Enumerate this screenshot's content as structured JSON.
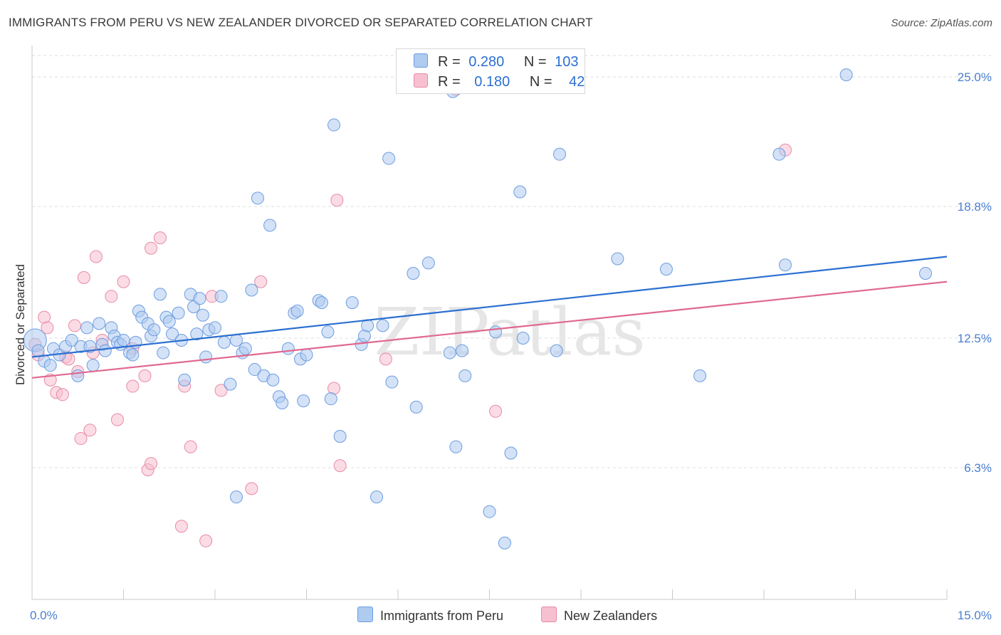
{
  "title": "IMMIGRANTS FROM PERU VS NEW ZEALANDER DIVORCED OR SEPARATED CORRELATION CHART",
  "source": "Source: ZipAtlas.com",
  "watermark": "ZIPatlas",
  "colors": {
    "blue_fill": "#aecbf0",
    "blue_stroke": "#6d9de0",
    "blue_line": "#2b6fd1",
    "pink_fill": "#f7c0d0",
    "pink_stroke": "#e88aa8",
    "pink_line": "#e06890",
    "tick_text": "#4a7fcf",
    "grid": "#dddddd"
  },
  "legend": {
    "rows": [
      {
        "r_label": "R =",
        "r_value": "0.280",
        "n_label": "N =",
        "n_value": "103",
        "color": "#aecbf0"
      },
      {
        "r_label": "R =",
        "r_value": "0.180",
        "n_label": "N =",
        "n_value": "42",
        "color": "#f7c0d0"
      }
    ]
  },
  "bottom_legend": [
    {
      "label": "Immigrants from Peru",
      "color": "#aecbf0"
    },
    {
      "label": "New Zealanders",
      "color": "#f7c0d0"
    }
  ],
  "chart_data": {
    "type": "scatter",
    "title": "IMMIGRANTS FROM PERU VS NEW ZEALANDER DIVORCED OR SEPARATED CORRELATION CHART",
    "xlabel": "",
    "ylabel": "Divorced or Separated",
    "xlim": [
      0,
      15
    ],
    "ylim": [
      0,
      26.5
    ],
    "x_tick_labels": [
      "0.0%",
      "15.0%"
    ],
    "y_ticks": [
      6.3,
      12.5,
      18.8,
      25.0
    ],
    "y_tick_labels": [
      "6.3%",
      "12.5%",
      "18.8%",
      "25.0%"
    ],
    "grid": true,
    "legend_position": "top-center",
    "series": [
      {
        "name": "Immigrants from Peru",
        "color": "#aecbf0",
        "trend": {
          "x": [
            0,
            15
          ],
          "y": [
            11.6,
            16.4
          ]
        },
        "points": [
          [
            0.05,
            12.4
          ],
          [
            0.1,
            11.9
          ],
          [
            0.2,
            11.4
          ],
          [
            0.3,
            11.2
          ],
          [
            0.35,
            12.0
          ],
          [
            0.45,
            11.7
          ],
          [
            0.55,
            12.1
          ],
          [
            0.65,
            12.4
          ],
          [
            0.75,
            10.7
          ],
          [
            0.8,
            12.1
          ],
          [
            0.9,
            13.0
          ],
          [
            0.95,
            12.1
          ],
          [
            1.0,
            11.2
          ],
          [
            1.1,
            13.2
          ],
          [
            1.15,
            12.2
          ],
          [
            1.2,
            11.9
          ],
          [
            1.3,
            13.0
          ],
          [
            1.35,
            12.6
          ],
          [
            1.4,
            12.3
          ],
          [
            1.45,
            12.2
          ],
          [
            1.5,
            12.4
          ],
          [
            1.6,
            11.8
          ],
          [
            1.65,
            11.7
          ],
          [
            1.7,
            12.3
          ],
          [
            1.75,
            13.8
          ],
          [
            1.8,
            13.5
          ],
          [
            1.9,
            13.2
          ],
          [
            1.95,
            12.6
          ],
          [
            2.0,
            12.9
          ],
          [
            2.1,
            14.6
          ],
          [
            2.15,
            11.8
          ],
          [
            2.2,
            13.5
          ],
          [
            2.25,
            13.3
          ],
          [
            2.3,
            12.7
          ],
          [
            2.4,
            13.7
          ],
          [
            2.45,
            12.4
          ],
          [
            2.5,
            10.5
          ],
          [
            2.6,
            14.6
          ],
          [
            2.65,
            14.0
          ],
          [
            2.7,
            12.7
          ],
          [
            2.75,
            14.4
          ],
          [
            2.8,
            13.6
          ],
          [
            2.85,
            11.6
          ],
          [
            2.9,
            12.9
          ],
          [
            3.0,
            13.0
          ],
          [
            3.1,
            14.5
          ],
          [
            3.15,
            12.3
          ],
          [
            3.25,
            10.3
          ],
          [
            3.35,
            12.4
          ],
          [
            3.45,
            11.8
          ],
          [
            3.5,
            12.0
          ],
          [
            3.6,
            14.8
          ],
          [
            3.65,
            11.0
          ],
          [
            3.7,
            19.2
          ],
          [
            3.8,
            10.7
          ],
          [
            3.9,
            17.9
          ],
          [
            3.95,
            10.5
          ],
          [
            4.05,
            9.7
          ],
          [
            4.1,
            9.4
          ],
          [
            4.2,
            12.0
          ],
          [
            4.3,
            13.7
          ],
          [
            4.35,
            13.8
          ],
          [
            4.4,
            11.5
          ],
          [
            4.45,
            9.5
          ],
          [
            4.5,
            11.7
          ],
          [
            4.7,
            14.3
          ],
          [
            4.75,
            14.2
          ],
          [
            4.85,
            12.8
          ],
          [
            4.9,
            9.6
          ],
          [
            4.95,
            22.7
          ],
          [
            5.05,
            7.8
          ],
          [
            5.25,
            14.2
          ],
          [
            5.4,
            12.2
          ],
          [
            5.45,
            12.6
          ],
          [
            5.5,
            13.1
          ],
          [
            5.75,
            13.1
          ],
          [
            5.85,
            21.1
          ],
          [
            5.9,
            10.4
          ],
          [
            6.25,
            15.6
          ],
          [
            6.3,
            9.2
          ],
          [
            6.5,
            16.1
          ],
          [
            6.85,
            11.8
          ],
          [
            6.9,
            24.3
          ],
          [
            6.95,
            7.3
          ],
          [
            7.05,
            11.9
          ],
          [
            7.1,
            10.7
          ],
          [
            7.5,
            4.2
          ],
          [
            7.6,
            12.8
          ],
          [
            7.75,
            2.7
          ],
          [
            7.85,
            7.0
          ],
          [
            8.0,
            19.5
          ],
          [
            8.05,
            12.5
          ],
          [
            8.6,
            11.9
          ],
          [
            8.65,
            21.3
          ],
          [
            9.6,
            16.3
          ],
          [
            10.4,
            15.8
          ],
          [
            10.95,
            10.7
          ],
          [
            12.25,
            21.3
          ],
          [
            12.35,
            16.0
          ],
          [
            13.35,
            25.1
          ],
          [
            14.65,
            15.6
          ],
          [
            3.35,
            4.9
          ],
          [
            5.65,
            4.9
          ]
        ]
      },
      {
        "name": "New Zealanders",
        "color": "#f7c0d0",
        "trend": {
          "x": [
            0,
            15
          ],
          "y": [
            10.6,
            15.2
          ]
        },
        "points": [
          [
            0.05,
            12.2
          ],
          [
            0.1,
            11.7
          ],
          [
            0.2,
            13.5
          ],
          [
            0.25,
            13.0
          ],
          [
            0.3,
            10.5
          ],
          [
            0.4,
            9.9
          ],
          [
            0.5,
            9.8
          ],
          [
            0.55,
            11.6
          ],
          [
            0.6,
            11.5
          ],
          [
            0.7,
            13.1
          ],
          [
            0.75,
            10.9
          ],
          [
            0.8,
            7.7
          ],
          [
            0.85,
            15.4
          ],
          [
            0.95,
            8.1
          ],
          [
            1.0,
            11.8
          ],
          [
            1.05,
            16.4
          ],
          [
            1.15,
            12.4
          ],
          [
            1.3,
            14.5
          ],
          [
            1.4,
            8.6
          ],
          [
            1.5,
            15.2
          ],
          [
            1.65,
            12.0
          ],
          [
            1.65,
            10.2
          ],
          [
            1.85,
            10.7
          ],
          [
            1.9,
            6.2
          ],
          [
            1.95,
            16.8
          ],
          [
            1.95,
            6.5
          ],
          [
            2.1,
            17.3
          ],
          [
            2.45,
            3.5
          ],
          [
            2.5,
            10.2
          ],
          [
            2.6,
            7.3
          ],
          [
            2.85,
            2.8
          ],
          [
            2.95,
            14.5
          ],
          [
            3.1,
            10.0
          ],
          [
            3.6,
            5.3
          ],
          [
            3.75,
            15.2
          ],
          [
            4.95,
            10.1
          ],
          [
            5.0,
            19.1
          ],
          [
            5.05,
            6.4
          ],
          [
            5.8,
            11.5
          ],
          [
            7.6,
            9.0
          ],
          [
            12.35,
            21.5
          ],
          [
            6.95,
            24.4
          ]
        ]
      }
    ]
  }
}
